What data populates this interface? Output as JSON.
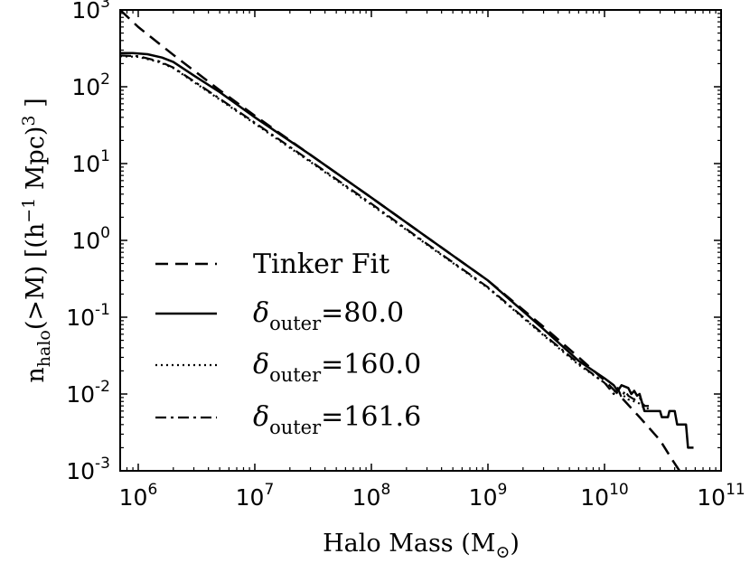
{
  "chart_data": {
    "type": "line",
    "scale": {
      "x": "log",
      "y": "log"
    },
    "xlim": [
      700000,
      100000000000
    ],
    "ylim": [
      0.001,
      1000
    ],
    "x_ticks": [
      {
        "base": "10",
        "exp": "6",
        "value": 1000000
      },
      {
        "base": "10",
        "exp": "7",
        "value": 10000000
      },
      {
        "base": "10",
        "exp": "8",
        "value": 100000000
      },
      {
        "base": "10",
        "exp": "9",
        "value": 1000000000
      },
      {
        "base": "10",
        "exp": "10",
        "value": 10000000000
      },
      {
        "base": "10",
        "exp": "11",
        "value": 100000000000
      }
    ],
    "y_ticks": [
      {
        "base": "10",
        "exp": "-3",
        "value": 0.001
      },
      {
        "base": "10",
        "exp": "-2",
        "value": 0.01
      },
      {
        "base": "10",
        "exp": "-1",
        "value": 0.1
      },
      {
        "base": "10",
        "exp": "0",
        "value": 1
      },
      {
        "base": "10",
        "exp": "1",
        "value": 10
      },
      {
        "base": "10",
        "exp": "2",
        "value": 100
      },
      {
        "base": "10",
        "exp": "3",
        "value": 1000
      }
    ],
    "xlabel": {
      "main": "Halo Mass (M",
      "sub": "⊙",
      "close": ")"
    },
    "ylabel": {
      "n": "n",
      "sub": "halo",
      "mid": "(>M) [(h",
      "sup1": "−1",
      "mpc": " Mpc)",
      "sup2": "3",
      "close": " ]"
    },
    "legend": {
      "position": "lower-left"
    },
    "series": [
      {
        "name": "Tinker Fit",
        "label_main": "Tinker Fit",
        "style": "dashed",
        "points": [
          [
            700000,
            1000
          ],
          [
            1000000,
            600
          ],
          [
            2000000,
            260
          ],
          [
            5000000,
            90
          ],
          [
            10000000,
            42
          ],
          [
            30000000,
            13
          ],
          [
            100000000,
            3.6
          ],
          [
            300000000,
            1.1
          ],
          [
            1000000000,
            0.3
          ],
          [
            3000000000,
            0.075
          ],
          [
            6000000000,
            0.03
          ],
          [
            10000000000,
            0.015
          ],
          [
            14000000000,
            0.009
          ],
          [
            20000000000,
            0.005
          ],
          [
            30000000000,
            0.0025
          ],
          [
            38000000000,
            0.0014
          ],
          [
            44000000000,
            0.001
          ]
        ]
      },
      {
        "name": "δouter=80.0",
        "label_delta": "δ",
        "label_sub": "outer",
        "label_val": "=80.0",
        "style": "solid",
        "points": [
          [
            700000,
            275
          ],
          [
            900000,
            275
          ],
          [
            1200000,
            265
          ],
          [
            1600000,
            240
          ],
          [
            2000000,
            210
          ],
          [
            3000000,
            140
          ],
          [
            5000000,
            85
          ],
          [
            10000000,
            40
          ],
          [
            30000000,
            13
          ],
          [
            100000000,
            3.6
          ],
          [
            300000000,
            1.1
          ],
          [
            1000000000,
            0.3
          ],
          [
            3000000000,
            0.07
          ],
          [
            6000000000,
            0.027
          ],
          [
            10000000000,
            0.016
          ],
          [
            12000000000,
            0.013
          ],
          [
            13000000000,
            0.011
          ],
          [
            14000000000,
            0.013
          ],
          [
            16000000000,
            0.012
          ],
          [
            17000000000,
            0.01
          ],
          [
            18000000000,
            0.011
          ],
          [
            19000000000,
            0.0095
          ],
          [
            20000000000,
            0.01
          ],
          [
            22000000000,
            0.006
          ],
          [
            30000000000,
            0.006
          ],
          [
            31000000000,
            0.005
          ],
          [
            35000000000,
            0.005
          ],
          [
            36000000000,
            0.006
          ],
          [
            40000000000,
            0.006
          ],
          [
            42000000000,
            0.004
          ],
          [
            50000000000,
            0.004
          ],
          [
            52000000000,
            0.002
          ],
          [
            58000000000,
            0.002
          ]
        ]
      },
      {
        "name": "δouter=160.0",
        "label_delta": "δ",
        "label_sub": "outer",
        "label_val": "=160.0",
        "style": "dotted",
        "points": [
          [
            700000,
            250
          ],
          [
            1000000,
            245
          ],
          [
            1500000,
            210
          ],
          [
            2000000,
            175
          ],
          [
            3000000,
            115
          ],
          [
            5000000,
            68
          ],
          [
            10000000,
            33
          ],
          [
            30000000,
            10.5
          ],
          [
            100000000,
            2.9
          ],
          [
            300000000,
            0.88
          ],
          [
            1000000000,
            0.24
          ],
          [
            3000000000,
            0.058
          ],
          [
            6000000000,
            0.024
          ],
          [
            10000000000,
            0.014
          ],
          [
            12000000000,
            0.011
          ],
          [
            14000000000,
            0.01
          ],
          [
            16000000000,
            0.0085
          ],
          [
            18000000000,
            0.008
          ],
          [
            20000000000,
            0.0075
          ],
          [
            22000000000,
            0.0065
          ],
          [
            24000000000,
            0.0065
          ]
        ]
      },
      {
        "name": "δouter=161.6",
        "label_delta": "δ",
        "label_sub": "outer",
        "label_val": "=161.6",
        "style": "dashdot",
        "points": [
          [
            700000,
            255
          ],
          [
            1000000,
            250
          ],
          [
            1500000,
            215
          ],
          [
            2000000,
            178
          ],
          [
            3000000,
            118
          ],
          [
            5000000,
            70
          ],
          [
            10000000,
            34
          ],
          [
            30000000,
            10.8
          ],
          [
            100000000,
            3.0
          ],
          [
            300000000,
            0.9
          ],
          [
            1000000000,
            0.245
          ],
          [
            3000000000,
            0.06
          ],
          [
            6000000000,
            0.025
          ],
          [
            10000000000,
            0.014
          ],
          [
            12000000000,
            0.01
          ],
          [
            13000000000,
            0.012
          ],
          [
            14000000000,
            0.009
          ],
          [
            15000000000,
            0.011
          ],
          [
            16000000000,
            0.0095
          ],
          [
            18000000000,
            0.0085
          ],
          [
            20000000000,
            0.009
          ],
          [
            22000000000,
            0.007
          ],
          [
            24000000000,
            0.007
          ]
        ]
      }
    ]
  }
}
